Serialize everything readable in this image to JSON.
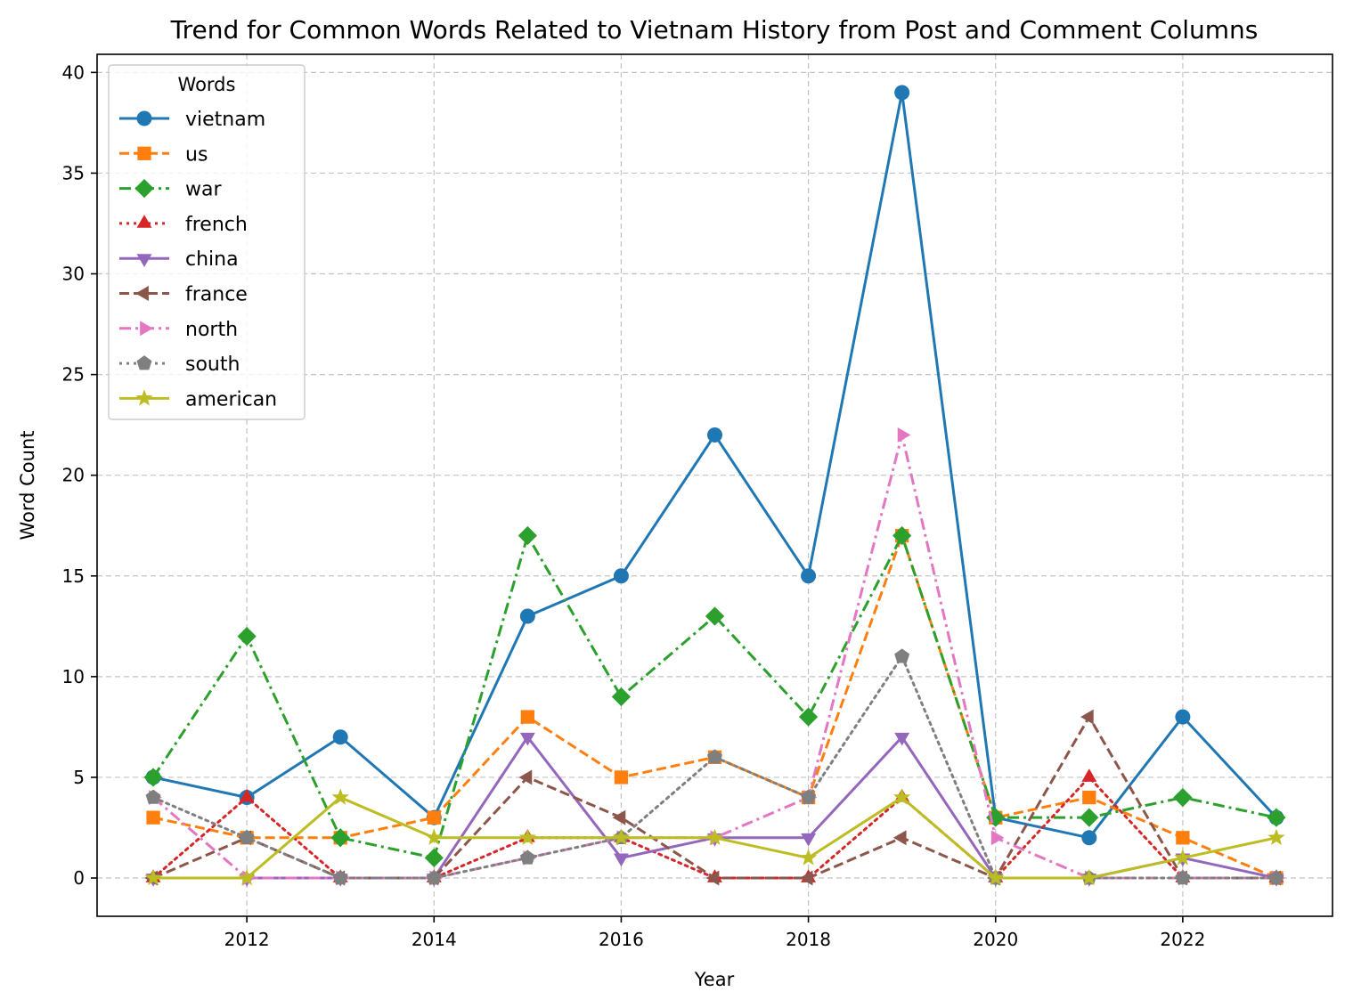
{
  "chart_data": {
    "type": "line",
    "title": "Trend for Common Words Related to Vietnam History from Post and Comment Columns",
    "xlabel": "Year",
    "ylabel": "Word Count",
    "x": [
      2011,
      2012,
      2013,
      2014,
      2015,
      2016,
      2017,
      2018,
      2019,
      2020,
      2021,
      2022,
      2023
    ],
    "xlim": [
      2010.4,
      2023.6
    ],
    "ylim": [
      -1.9,
      40.9
    ],
    "xticks": [
      2012,
      2014,
      2016,
      2018,
      2020,
      2022
    ],
    "yticks": [
      0,
      5,
      10,
      15,
      20,
      25,
      30,
      35,
      40
    ],
    "grid": true,
    "legend": {
      "title": "Words",
      "placement": "top-left"
    },
    "series": [
      {
        "name": "vietnam",
        "color": "#1f77b4",
        "linestyle": "solid",
        "marker": "circle",
        "values": [
          5,
          4,
          7,
          3,
          13,
          15,
          22,
          15,
          39,
          3,
          2,
          8,
          3
        ]
      },
      {
        "name": "us",
        "color": "#ff7f0e",
        "linestyle": "dashed",
        "marker": "square",
        "values": [
          3,
          2,
          2,
          3,
          8,
          5,
          6,
          4,
          17,
          3,
          4,
          2,
          0
        ]
      },
      {
        "name": "war",
        "color": "#2ca02c",
        "linestyle": "dashdot",
        "marker": "diamond",
        "values": [
          5,
          12,
          2,
          1,
          17,
          9,
          13,
          8,
          17,
          3,
          3,
          4,
          3
        ]
      },
      {
        "name": "french",
        "color": "#d62728",
        "linestyle": "dotted",
        "marker": "triangle-up",
        "values": [
          0,
          4,
          0,
          0,
          2,
          2,
          0,
          0,
          4,
          0,
          5,
          0,
          0
        ]
      },
      {
        "name": "china",
        "color": "#9467bd",
        "linestyle": "solid",
        "marker": "triangle-down",
        "values": [
          0,
          0,
          0,
          0,
          7,
          1,
          2,
          2,
          7,
          0,
          0,
          1,
          0
        ]
      },
      {
        "name": "france",
        "color": "#8c564b",
        "linestyle": "dashed",
        "marker": "triangle-left",
        "values": [
          0,
          2,
          0,
          0,
          5,
          3,
          0,
          0,
          2,
          0,
          8,
          0,
          0
        ]
      },
      {
        "name": "north",
        "color": "#e377c2",
        "linestyle": "dashdot",
        "marker": "triangle-right",
        "values": [
          4,
          0,
          0,
          0,
          1,
          2,
          2,
          4,
          22,
          2,
          0,
          0,
          0
        ]
      },
      {
        "name": "south",
        "color": "#7f7f7f",
        "linestyle": "dotted",
        "marker": "pentagon",
        "values": [
          4,
          2,
          0,
          0,
          1,
          2,
          6,
          4,
          11,
          0,
          0,
          0,
          0
        ]
      },
      {
        "name": "american",
        "color": "#bcbd22",
        "linestyle": "solid",
        "marker": "star",
        "values": [
          0,
          0,
          4,
          2,
          2,
          2,
          2,
          1,
          4,
          0,
          0,
          1,
          2
        ]
      }
    ]
  }
}
